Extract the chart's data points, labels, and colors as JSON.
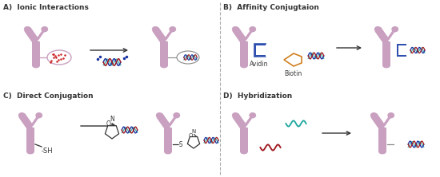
{
  "panel_A_label": "A)  Ionic Interactions",
  "panel_B_label": "B)  Affinity Conjugtaion",
  "panel_C_label": "C)  Direct Conjugation",
  "panel_D_label": "D)  Hybridization",
  "antibody_color": "#C9A0C0",
  "dna_color1": "#A01820",
  "dna_color2": "#1830A0",
  "dna_color3": "#20A8A0",
  "avidin_color": "#3050B0",
  "biotin_color": "#D08020",
  "bg_color": "#FFFFFF",
  "label_fontsize": 6.5,
  "annotation_fontsize": 5.5
}
